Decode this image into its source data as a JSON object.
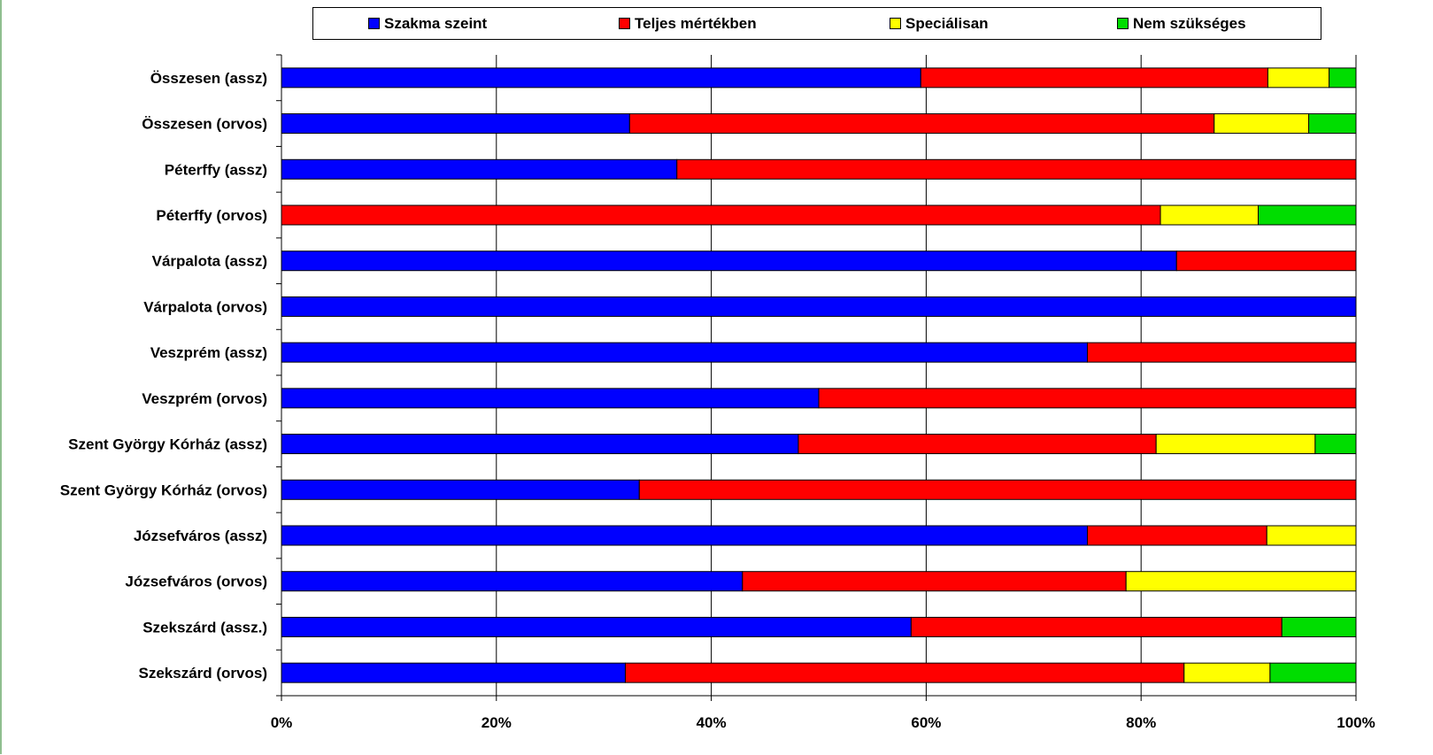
{
  "chart_data": {
    "type": "bar",
    "orientation": "horizontal",
    "stacked": "percent",
    "categories": [
      "Összesen (assz)",
      "Összesen (orvos)",
      "Péterffy (assz)",
      "Péterffy (orvos)",
      "Várpalota (assz)",
      "Várpalota (orvos)",
      "Veszprém (assz)",
      "Veszprém (orvos)",
      "Szent György Kórház (assz)",
      "Szent György Kórház (orvos)",
      "Józsefváros (assz)",
      "Józsefváros (orvos)",
      "Szekszárd (assz.)",
      "Szekszárd (orvos)"
    ],
    "series": [
      {
        "name": "Szakma szeint",
        "color": "#0000ff",
        "values": [
          59.5,
          32.4,
          36.8,
          0,
          83.3,
          100,
          75,
          50,
          48.1,
          33.3,
          75,
          42.9,
          58.6,
          32
        ]
      },
      {
        "name": "Teljes mértékben",
        "color": "#ff0000",
        "values": [
          32.3,
          54.4,
          63.2,
          81.8,
          16.7,
          0,
          25,
          50,
          33.3,
          66.7,
          16.7,
          35.7,
          34.5,
          52
        ]
      },
      {
        "name": "Speciálisan",
        "color": "#ffff00",
        "values": [
          5.7,
          8.8,
          0,
          9.1,
          0,
          0,
          0,
          0,
          14.8,
          0,
          8.3,
          21.4,
          0,
          8
        ]
      },
      {
        "name": "Nem szükséges",
        "color": "#00dd00",
        "values": [
          2.5,
          4.4,
          0,
          9.1,
          0,
          0,
          0,
          0,
          3.8,
          0,
          0,
          0,
          6.9,
          8
        ]
      }
    ],
    "x_ticks": [
      "0%",
      "20%",
      "40%",
      "60%",
      "80%",
      "100%"
    ],
    "xlim": [
      0,
      100
    ],
    "grid": "vertical",
    "legend_position": "top"
  }
}
